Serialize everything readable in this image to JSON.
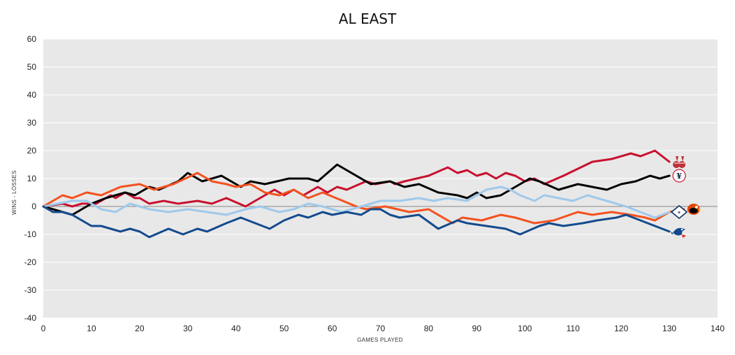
{
  "chart_data": {
    "type": "line",
    "title": "AL EAST",
    "xlabel": "GAMES PLAYED",
    "ylabel": "WINS - LOSSES",
    "xlim": [
      0,
      140
    ],
    "ylim": [
      -40,
      60
    ],
    "xticks": [
      "0",
      "10",
      "20",
      "30",
      "40",
      "50",
      "60",
      "70",
      "80",
      "90",
      "100",
      "110",
      "120",
      "130",
      "140"
    ],
    "yticks": [
      "60",
      "50",
      "40",
      "30",
      "20",
      "10",
      "0",
      "-10",
      "-20",
      "-30",
      "-40"
    ],
    "grid": true,
    "legend": "team logos at line ends (right)",
    "colors": {
      "plot_background": "#e8e8e8",
      "gridline": "#ffffff",
      "zero_line": "#888888"
    },
    "series": [
      {
        "key": "red_sox",
        "icon": "red-sox-logo-icon",
        "color": "#c8102e",
        "points": [
          [
            0,
            0
          ],
          [
            4,
            1
          ],
          [
            6,
            0
          ],
          [
            8,
            1
          ],
          [
            11,
            1
          ],
          [
            14,
            4
          ],
          [
            15,
            3
          ],
          [
            17,
            5
          ],
          [
            19,
            3
          ],
          [
            20,
            3
          ],
          [
            22,
            1
          ],
          [
            25,
            2
          ],
          [
            28,
            1
          ],
          [
            32,
            2
          ],
          [
            35,
            1
          ],
          [
            38,
            3
          ],
          [
            42,
            0
          ],
          [
            46,
            4
          ],
          [
            48,
            6
          ],
          [
            50,
            4
          ],
          [
            52,
            6
          ],
          [
            54,
            4
          ],
          [
            57,
            7
          ],
          [
            59,
            5
          ],
          [
            61,
            7
          ],
          [
            63,
            6
          ],
          [
            67,
            9
          ],
          [
            69,
            8
          ],
          [
            72,
            9
          ],
          [
            73,
            8
          ],
          [
            75,
            9
          ],
          [
            80,
            11
          ],
          [
            84,
            14
          ],
          [
            86,
            12
          ],
          [
            88,
            13
          ],
          [
            90,
            11
          ],
          [
            92,
            12
          ],
          [
            94,
            10
          ],
          [
            96,
            12
          ],
          [
            98,
            11
          ],
          [
            100,
            9
          ],
          [
            102,
            10
          ],
          [
            104,
            8
          ],
          [
            108,
            11
          ],
          [
            114,
            16
          ],
          [
            118,
            17
          ],
          [
            122,
            19
          ],
          [
            124,
            18
          ],
          [
            127,
            20
          ],
          [
            130,
            16
          ]
        ]
      },
      {
        "key": "yankees",
        "icon": "yankees-logo-icon",
        "color": "#000000",
        "points": [
          [
            0,
            0
          ],
          [
            2,
            -1
          ],
          [
            4,
            -2
          ],
          [
            6,
            -3
          ],
          [
            10,
            1
          ],
          [
            13,
            3
          ],
          [
            17,
            5
          ],
          [
            19,
            4
          ],
          [
            22,
            7
          ],
          [
            24,
            6
          ],
          [
            28,
            9
          ],
          [
            30,
            12
          ],
          [
            33,
            9
          ],
          [
            37,
            11
          ],
          [
            41,
            7
          ],
          [
            43,
            9
          ],
          [
            46,
            8
          ],
          [
            51,
            10
          ],
          [
            53,
            10
          ],
          [
            55,
            10
          ],
          [
            57,
            9
          ],
          [
            61,
            15
          ],
          [
            64,
            12
          ],
          [
            68,
            8
          ],
          [
            72,
            9
          ],
          [
            75,
            7
          ],
          [
            78,
            8
          ],
          [
            82,
            5
          ],
          [
            86,
            4
          ],
          [
            88,
            3
          ],
          [
            90,
            5
          ],
          [
            92,
            3
          ],
          [
            95,
            4
          ],
          [
            101,
            10
          ],
          [
            103,
            9
          ],
          [
            107,
            6
          ],
          [
            111,
            8
          ],
          [
            114,
            7
          ],
          [
            117,
            6
          ],
          [
            120,
            8
          ],
          [
            123,
            9
          ],
          [
            126,
            11
          ],
          [
            128,
            10
          ],
          [
            130,
            11
          ]
        ]
      },
      {
        "key": "orioles",
        "icon": "orioles-logo-icon",
        "color": "#f4511e",
        "points": [
          [
            0,
            0
          ],
          [
            4,
            4
          ],
          [
            6,
            3
          ],
          [
            9,
            5
          ],
          [
            12,
            4
          ],
          [
            16,
            7
          ],
          [
            20,
            8
          ],
          [
            23,
            6
          ],
          [
            27,
            8
          ],
          [
            32,
            12
          ],
          [
            35,
            9
          ],
          [
            38,
            8
          ],
          [
            40,
            7
          ],
          [
            43,
            8
          ],
          [
            46,
            5
          ],
          [
            49,
            4
          ],
          [
            52,
            6
          ],
          [
            55,
            3
          ],
          [
            58,
            5
          ],
          [
            65,
            0
          ],
          [
            67,
            -1
          ],
          [
            71,
            0
          ],
          [
            76,
            -2
          ],
          [
            80,
            -1
          ],
          [
            85,
            -6
          ],
          [
            87,
            -4
          ],
          [
            91,
            -5
          ],
          [
            95,
            -3
          ],
          [
            98,
            -4
          ],
          [
            102,
            -6
          ],
          [
            106,
            -5
          ],
          [
            111,
            -2
          ],
          [
            114,
            -3
          ],
          [
            118,
            -2
          ],
          [
            122,
            -3
          ],
          [
            125,
            -4
          ],
          [
            127,
            -5
          ],
          [
            130,
            -2
          ],
          [
            133,
            -1
          ]
        ]
      },
      {
        "key": "rays",
        "icon": "rays-logo-icon",
        "color": "#9ec9ec",
        "points": [
          [
            0,
            0
          ],
          [
            3,
            1
          ],
          [
            6,
            2
          ],
          [
            9,
            2
          ],
          [
            12,
            -1
          ],
          [
            15,
            -2
          ],
          [
            18,
            1
          ],
          [
            22,
            -1
          ],
          [
            26,
            -2
          ],
          [
            30,
            -1
          ],
          [
            34,
            -2
          ],
          [
            38,
            -3
          ],
          [
            42,
            -1
          ],
          [
            45,
            0
          ],
          [
            49,
            -2
          ],
          [
            52,
            -1
          ],
          [
            55,
            1
          ],
          [
            58,
            0
          ],
          [
            62,
            -2
          ],
          [
            66,
            0
          ],
          [
            70,
            2
          ],
          [
            74,
            2
          ],
          [
            78,
            3
          ],
          [
            81,
            2
          ],
          [
            84,
            3
          ],
          [
            88,
            2
          ],
          [
            92,
            6
          ],
          [
            95,
            7
          ],
          [
            97,
            6
          ],
          [
            99,
            4
          ],
          [
            102,
            2
          ],
          [
            104,
            4
          ],
          [
            107,
            3
          ],
          [
            110,
            2
          ],
          [
            113,
            4
          ],
          [
            117,
            2
          ],
          [
            121,
            0
          ],
          [
            124,
            -2
          ],
          [
            127,
            -4
          ],
          [
            130,
            -2
          ]
        ]
      },
      {
        "key": "blue_jays",
        "icon": "blue-jays-logo-icon",
        "color": "#134a8e",
        "points": [
          [
            0,
            0
          ],
          [
            2,
            -2
          ],
          [
            4,
            -2
          ],
          [
            6,
            -3
          ],
          [
            10,
            -7
          ],
          [
            12,
            -7
          ],
          [
            14,
            -8
          ],
          [
            16,
            -9
          ],
          [
            18,
            -8
          ],
          [
            20,
            -9
          ],
          [
            22,
            -11
          ],
          [
            26,
            -8
          ],
          [
            29,
            -10
          ],
          [
            32,
            -8
          ],
          [
            34,
            -9
          ],
          [
            38,
            -6
          ],
          [
            41,
            -4
          ],
          [
            44,
            -6
          ],
          [
            47,
            -8
          ],
          [
            50,
            -5
          ],
          [
            53,
            -3
          ],
          [
            55,
            -4
          ],
          [
            58,
            -2
          ],
          [
            60,
            -3
          ],
          [
            63,
            -2
          ],
          [
            66,
            -3
          ],
          [
            68,
            -1
          ],
          [
            70,
            -1
          ],
          [
            72,
            -3
          ],
          [
            74,
            -4
          ],
          [
            78,
            -3
          ],
          [
            82,
            -8
          ],
          [
            86,
            -5
          ],
          [
            88,
            -6
          ],
          [
            92,
            -7
          ],
          [
            96,
            -8
          ],
          [
            99,
            -10
          ],
          [
            103,
            -7
          ],
          [
            105,
            -6
          ],
          [
            108,
            -7
          ],
          [
            112,
            -6
          ],
          [
            115,
            -5
          ],
          [
            119,
            -4
          ],
          [
            121,
            -3
          ],
          [
            124,
            -5
          ],
          [
            127,
            -7
          ],
          [
            130,
            -9
          ]
        ]
      }
    ]
  }
}
